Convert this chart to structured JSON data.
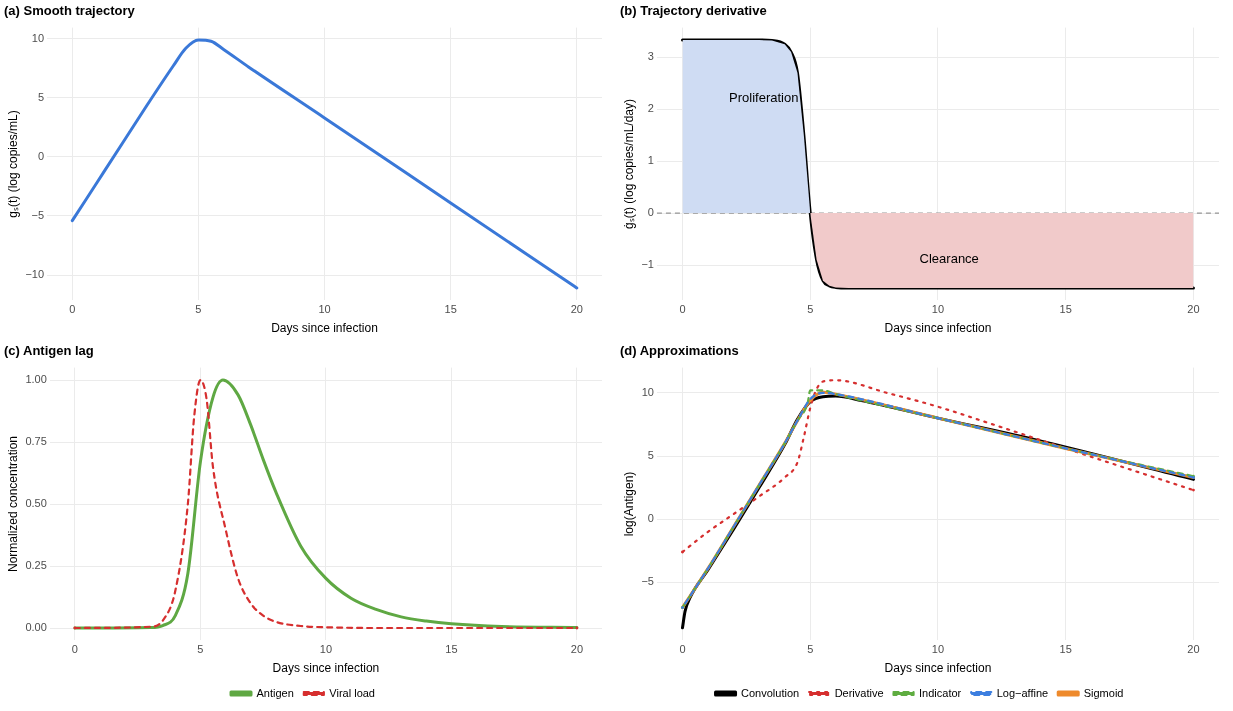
{
  "chart_data": [
    {
      "type": "line",
      "title": "(a) Smooth trajectory",
      "xlabel": "Days since infection",
      "ylabel": "gₛ(t) (log copies/mL)",
      "x": [
        0,
        1,
        2,
        3,
        4,
        4.5,
        5,
        5.5,
        6,
        7,
        10,
        15,
        20
      ],
      "series": [
        {
          "color": "#3a78d8",
          "values": [
            -5.4,
            -2.1,
            1.2,
            4.5,
            7.7,
            9.2,
            9.9,
            9.8,
            9.1,
            7.6,
            3.3,
            -3.9,
            -11.1
          ]
        }
      ],
      "xlim": [
        -1,
        21
      ],
      "xticks": [
        0,
        5,
        10,
        15,
        20
      ],
      "ylim": [
        -12.15,
        10.95
      ],
      "yticks": [
        -10,
        -5,
        0,
        5,
        10
      ],
      "grid": true,
      "legend": false
    },
    {
      "type": "line",
      "title": "(b) Trajectory derivative",
      "xlabel": "Days since infection",
      "ylabel": "ġₛ(t) (log copies/mL/day)",
      "x": [
        0,
        1,
        2,
        3,
        3.5,
        4,
        4.25,
        4.5,
        4.75,
        5,
        5.25,
        5.5,
        5.75,
        6,
        6.5,
        10,
        15,
        20
      ],
      "series": [
        {
          "type": "area",
          "color": "#cfdcf3",
          "values": [
            3.33,
            3.33,
            3.33,
            3.33,
            3.32,
            3.25,
            3.1,
            2.7,
            1.5,
            0,
            null,
            null,
            null,
            null,
            null,
            null,
            null,
            null
          ]
        },
        {
          "type": "area",
          "color": "#f1caca",
          "values": [
            null,
            null,
            null,
            null,
            null,
            null,
            null,
            null,
            null,
            0,
            -0.9,
            -1.3,
            -1.4,
            -1.43,
            -1.44,
            -1.44,
            -1.44,
            -1.44
          ]
        },
        {
          "type": "line",
          "color": "#000000",
          "values": [
            3.33,
            3.33,
            3.33,
            3.33,
            3.32,
            3.25,
            3.1,
            2.7,
            1.5,
            0,
            -0.9,
            -1.3,
            -1.4,
            -1.43,
            -1.44,
            -1.44,
            -1.44,
            -1.44
          ]
        }
      ],
      "ref_lines": [
        {
          "axis": "y",
          "value": 0,
          "color": "#7f7f7f",
          "line_style": "dashed"
        }
      ],
      "annotations": [
        "Proliferation",
        "Clearance"
      ],
      "xlim": [
        -1,
        21
      ],
      "xticks": [
        0,
        5,
        10,
        15,
        20
      ],
      "ylim": [
        -1.68,
        3.57
      ],
      "yticks": [
        -1,
        0,
        1,
        2,
        3
      ],
      "grid": true,
      "legend": false
    },
    {
      "type": "line",
      "title": "(c) Antigen lag",
      "xlabel": "Days since infection",
      "ylabel": "Normalized concentration",
      "series": [
        {
          "name": "Antigen",
          "color": "#5fa843",
          "line_style": "solid",
          "x": [
            0,
            3,
            3.5,
            4,
            4.5,
            5,
            5.5,
            5.9,
            6.5,
            7,
            7.5,
            8,
            9,
            10,
            11,
            12,
            13,
            14,
            15,
            17,
            20
          ],
          "values": [
            0,
            0.002,
            0.01,
            0.05,
            0.22,
            0.67,
            0.93,
            1,
            0.94,
            0.82,
            0.68,
            0.55,
            0.33,
            0.2,
            0.12,
            0.075,
            0.045,
            0.028,
            0.017,
            0.006,
            0.002
          ]
        },
        {
          "name": "Viral load",
          "color": "#d62f2f",
          "line_style": "dashed",
          "x": [
            0,
            3,
            3.5,
            4,
            4.5,
            4.75,
            5,
            5.25,
            5.5,
            6,
            6.5,
            7,
            7.5,
            8,
            9,
            10,
            12,
            20
          ],
          "values": [
            0,
            0.005,
            0.03,
            0.15,
            0.5,
            0.85,
            1,
            0.92,
            0.65,
            0.4,
            0.2,
            0.1,
            0.05,
            0.025,
            0.008,
            0.003,
            0,
            0
          ]
        }
      ],
      "xlim": [
        -1,
        21
      ],
      "xticks": [
        0,
        5,
        10,
        15,
        20
      ],
      "ylim": [
        -0.05,
        1.05
      ],
      "yticks": [
        {
          "value": 0,
          "label": "0.00"
        },
        {
          "value": 0.25,
          "label": "0.25"
        },
        {
          "value": 0.5,
          "label": "0.50"
        },
        {
          "value": 0.75,
          "label": "0.75"
        },
        {
          "value": 1,
          "label": "1.00"
        }
      ],
      "grid": true,
      "legend": "bottom"
    },
    {
      "type": "line",
      "title": "(d) Approximations",
      "xlabel": "Days since infection",
      "ylabel": "log(Antigen)",
      "series": [
        {
          "name": "Convolution",
          "color": "#000000",
          "line_style": "solid",
          "x": [
            0,
            0.1,
            0.3,
            1,
            2,
            3,
            4,
            4.5,
            5,
            5.5,
            6,
            7,
            10,
            14,
            20
          ],
          "values": [
            -8.6,
            -7.3,
            -6.2,
            -4,
            -0.8,
            2.5,
            5.9,
            7.9,
            9.3,
            9.7,
            9.75,
            9.4,
            8,
            6.2,
            3.15
          ]
        },
        {
          "name": "Derivative",
          "color": "#d62f2f",
          "line_style": "dotted",
          "x": [
            0,
            1,
            2,
            3,
            4,
            4.5,
            4.75,
            5,
            5.25,
            5.5,
            6,
            8,
            10,
            12,
            15,
            20
          ],
          "values": [
            -2.6,
            -1,
            0.4,
            1.8,
            3.3,
            4.5,
            6.5,
            8.8,
            10.3,
            10.9,
            11,
            10,
            8.9,
            7.6,
            5.6,
            2.3
          ]
        },
        {
          "name": "Indicator",
          "color": "#5fad41",
          "line_style": "dashed",
          "x": [
            0,
            1,
            2,
            3,
            4,
            4.5,
            4.9,
            5,
            5.5,
            6,
            10,
            15,
            20
          ],
          "values": [
            -7,
            -3.9,
            -0.6,
            2.7,
            6,
            7.8,
            9.2,
            10.2,
            10.2,
            9.9,
            8,
            5.6,
            3.4
          ]
        },
        {
          "name": "Log−affine",
          "color": "#3d7fe0",
          "line_style": "dashed",
          "x": [
            0,
            1,
            2,
            3,
            4,
            4.5,
            5,
            5.5,
            6,
            10,
            15,
            20
          ],
          "values": [
            -7,
            -3.9,
            -0.6,
            2.7,
            6,
            7.8,
            9.5,
            10,
            9.9,
            8,
            5.6,
            3.3
          ]
        },
        {
          "name": "Sigmoid",
          "color": "#ee8a2c",
          "line_style": "solid",
          "x": [
            0,
            1,
            2,
            3,
            4,
            4.5,
            5,
            5.5,
            6,
            10,
            15,
            20
          ],
          "values": [
            -7,
            -3.9,
            -0.6,
            2.7,
            6,
            7.8,
            9.4,
            10.05,
            9.9,
            8,
            5.6,
            3.3
          ]
        }
      ],
      "xlim": [
        -1,
        21
      ],
      "xticks": [
        0,
        5,
        10,
        15,
        20
      ],
      "ylim": [
        -9.6,
        12
      ],
      "yticks": [
        -5,
        0,
        5,
        10
      ],
      "grid": true,
      "legend": "bottom"
    }
  ]
}
